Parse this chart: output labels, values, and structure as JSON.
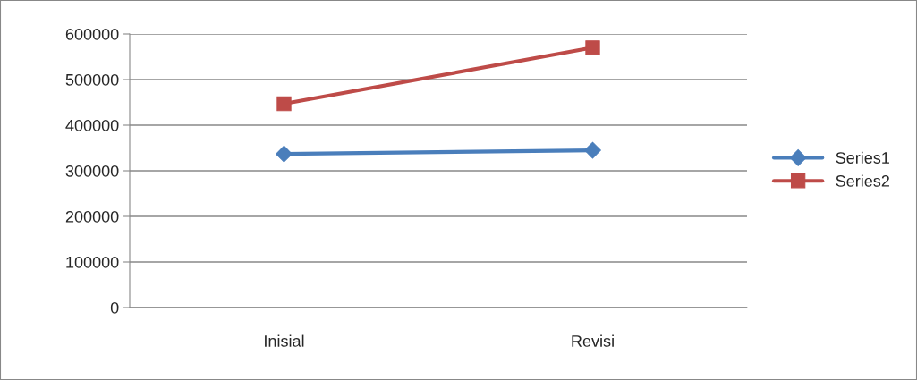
{
  "chart_data": {
    "type": "line",
    "categories": [
      "Inisial",
      "Revisi"
    ],
    "series": [
      {
        "name": "Series1",
        "color": "#4a7ebb",
        "marker": "diamond",
        "values": [
          337000,
          345000
        ]
      },
      {
        "name": "Series2",
        "color": "#be4b48",
        "marker": "square",
        "values": [
          447000,
          570000
        ]
      }
    ],
    "ylim": [
      0,
      600000
    ],
    "yticks": [
      0,
      100000,
      200000,
      300000,
      400000,
      500000,
      600000
    ],
    "grid": "y",
    "legend": "right",
    "line_style": "solid"
  }
}
